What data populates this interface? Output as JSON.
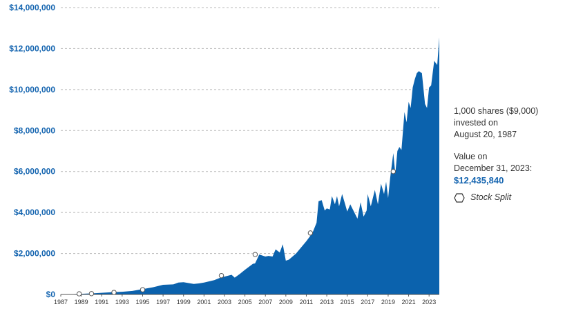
{
  "chart_data": {
    "type": "area",
    "title": "",
    "xlabel": "",
    "ylabel": "",
    "ylim": [
      0,
      14000000
    ],
    "xlim": [
      1987,
      2024
    ],
    "grid": true,
    "series_color": "#0b62ad",
    "y_ticks": [
      "$0",
      "$2,000,000",
      "$4,000,000",
      "$6,000,000",
      "$8,000,000",
      "$10,000,000",
      "$12,000,000",
      "$14,000,000"
    ],
    "y_tick_values": [
      0,
      2000000,
      4000000,
      6000000,
      8000000,
      10000000,
      12000000,
      14000000
    ],
    "x_ticks": [
      "1987",
      "1989",
      "1991",
      "1993",
      "1995",
      "1997",
      "1999",
      "2001",
      "2003",
      "2005",
      "2007",
      "2009",
      "2011",
      "2013",
      "2015",
      "2017",
      "2019",
      "2021",
      "2023"
    ],
    "series": [
      {
        "x": [
          1987.6,
          1988,
          1989,
          1990,
          1991,
          1992,
          1993,
          1994,
          1995,
          1996,
          1997,
          1998,
          1998.5,
          1999,
          2000,
          2000.5,
          2001,
          2002,
          2002.5,
          2003,
          2003.7,
          2004,
          2004.5,
          2005,
          2005.8,
          2005.9,
          2006,
          2006.4,
          2007,
          2007.3,
          2007.7,
          2008.0,
          2008.4,
          2008.7,
          2009,
          2009.3,
          2010,
          2011,
          2011.6,
          2012,
          2012.2,
          2012.5,
          2012.8,
          2013,
          2013.3,
          2013.5,
          2013.8,
          2014,
          2014.2,
          2014.5,
          2014.8,
          2015,
          2015.3,
          2015.6,
          2016,
          2016.3,
          2016.6,
          2016.9,
          2017,
          2017.3,
          2017.7,
          2018,
          2018.3,
          2018.6,
          2018.8,
          2019,
          2019.2,
          2019.5,
          2019.7,
          2019.9,
          2020.1,
          2020.3,
          2020.6,
          2020.8,
          2021,
          2021.2,
          2021.4,
          2021.6,
          2021.8,
          2022,
          2022.3,
          2022.6,
          2022.8,
          2023,
          2023.2,
          2023.5,
          2023.8,
          2024
        ],
        "values": [
          10000,
          15000,
          30000,
          50000,
          80000,
          110000,
          130000,
          170000,
          260000,
          350000,
          470000,
          490000,
          580000,
          600000,
          510000,
          540000,
          580000,
          700000,
          800000,
          870000,
          960000,
          820000,
          1000000,
          1200000,
          1500000,
          1500000,
          1520000,
          1950000,
          1850000,
          1880000,
          1850000,
          2200000,
          2050000,
          2450000,
          1650000,
          1700000,
          2000000,
          2600000,
          3000000,
          3500000,
          4550000,
          4600000,
          4100000,
          4200000,
          4150000,
          4800000,
          4400000,
          4800000,
          4300000,
          4900000,
          4400000,
          4050000,
          4400000,
          4100000,
          3700000,
          4500000,
          3800000,
          4100000,
          4900000,
          4300000,
          5100000,
          4400000,
          5400000,
          4900000,
          5500000,
          4700000,
          5700000,
          6900000,
          5900000,
          7000000,
          7200000,
          7050000,
          8900000,
          8400000,
          9400000,
          9100000,
          10100000,
          10500000,
          10800000,
          10900000,
          10800000,
          9300000,
          9100000,
          10100000,
          10200000,
          11400000,
          11200000,
          12550000
        ]
      }
    ],
    "split_markers": {
      "label": "Stock Split",
      "x": [
        1988.8,
        1990.0,
        1992.2,
        1995.0,
        2002.7,
        2006.0,
        2011.4,
        2019.5
      ],
      "values": [
        30000,
        40000,
        100000,
        230000,
        920000,
        1950000,
        3000000,
        6000000
      ]
    }
  },
  "annotation": {
    "invest_lines": [
      "1,000 shares ($9,000)",
      "invested on",
      "August 20, 1987"
    ],
    "value_lines": [
      "Value on",
      "December 31, 2023:"
    ],
    "value_amount": "$12,435,840"
  },
  "legend": {
    "marker_icon": "hexagon-icon",
    "label": "Stock Split"
  }
}
